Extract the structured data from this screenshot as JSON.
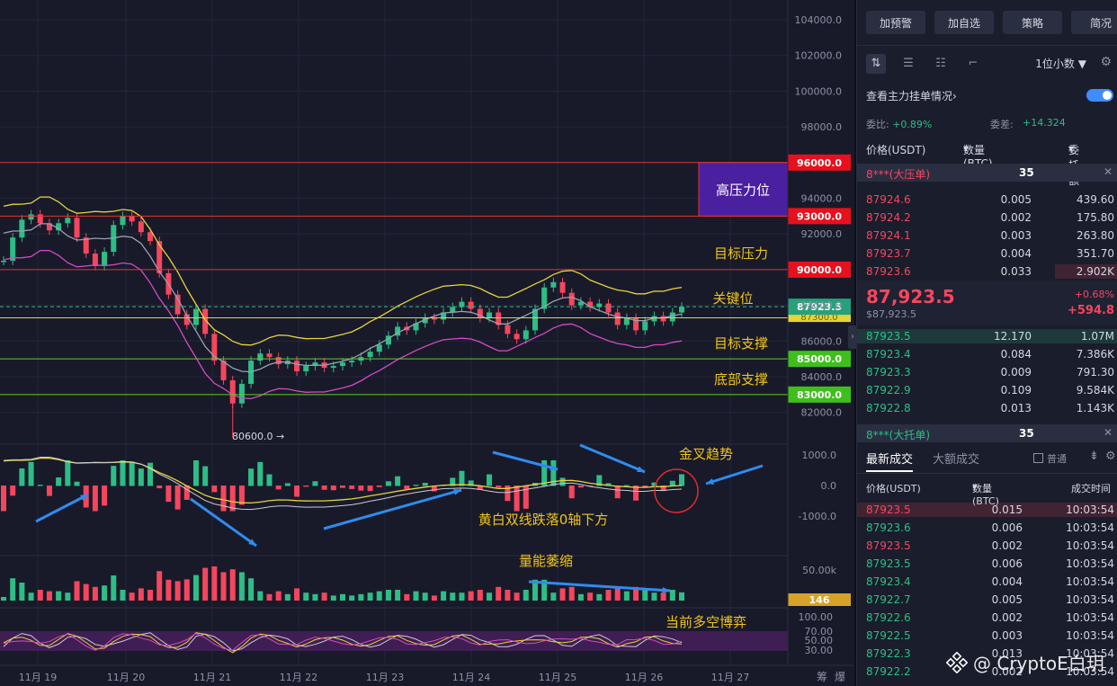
{
  "chart_data": {
    "type": "candlestick",
    "x_ticks": [
      "11月 19",
      "11月 20",
      "11月 21",
      "11月 22",
      "11月 23",
      "11月 24",
      "11月 25",
      "11月 26",
      "11月 27"
    ],
    "price_ticks": [
      "104000.0",
      "102000.0",
      "100000.0",
      "98000.0",
      "96000.0",
      "94000.0",
      "92000.0",
      "90000.0",
      "88000.0",
      "86000.0",
      "84000.0",
      "82000.0"
    ],
    "ylim": [
      81000,
      105000
    ],
    "current_price_label": "87923.5",
    "hidden_line_label": "87300.0",
    "levels": [
      {
        "price": 96000,
        "label": "96000.0",
        "color": "#e23434",
        "tag_color": "#e8101c"
      },
      {
        "price": 93000,
        "label": "93000.0",
        "color": "#e23434",
        "tag_color": "#e8101c"
      },
      {
        "price": 90000,
        "label": "90000.0",
        "color": "#e23434",
        "tag_color": "#e8101c"
      },
      {
        "price": 87300,
        "label": "",
        "color": "#e6d438",
        "tag_color": "#e6d438"
      },
      {
        "price": 85000,
        "label": "85000.0",
        "color": "#5fd11c",
        "tag_color": "#3fbf1c"
      },
      {
        "price": 83000,
        "label": "83000.0",
        "color": "#5fd11c",
        "tag_color": "#3fbf1c"
      }
    ],
    "zone": {
      "top": 96000,
      "bottom": 93000,
      "label": "高压力位",
      "color": "#4a1fa0"
    },
    "annotations": {
      "target_resistance": "目标压力",
      "key_level": "关键位",
      "target_support": "目标支撑",
      "bottom_support": "底部支撑",
      "low_marker": "80600.0 →",
      "golden_cross": "金叉趋势",
      "macd_note": "黄白双线跌落0轴下方",
      "volume_note": "量能萎缩",
      "rsi_note": "当前多空博弈"
    },
    "low_price": 80600,
    "close_series": [
      90500,
      91800,
      92800,
      93100,
      92600,
      92200,
      92600,
      92900,
      91800,
      90900,
      90200,
      91000,
      92500,
      93000,
      92700,
      92100,
      91600,
      89800,
      88600,
      87500,
      86900,
      87800,
      86400,
      84900,
      83800,
      82500,
      83600,
      84900,
      85300,
      85100,
      84700,
      84900,
      84300,
      84600,
      84800,
      84500,
      84600,
      84800,
      84900,
      85100,
      85400,
      85800,
      86300,
      86800,
      86600,
      87000,
      87300,
      87200,
      87600,
      87900,
      88200,
      87800,
      87300,
      87600,
      86900,
      86400,
      86100,
      86600,
      87800,
      89000,
      89300,
      88700,
      88000,
      88200,
      87900,
      88100,
      87600,
      86900,
      87300,
      86600,
      87100,
      87400,
      87100,
      87600,
      87923
    ],
    "macd_ticks": [
      "1000.0",
      "0.0",
      "-1000.0"
    ],
    "volume_tick": "50.00k",
    "volume_label": "146",
    "rsi_ticks": [
      "100.00",
      "70.00",
      "50.00",
      "30.00"
    ],
    "right_bottom_labels": [
      "筹",
      "爆"
    ]
  },
  "panel": {
    "buttons": [
      "加预警",
      "加自选",
      "策略",
      "简况"
    ],
    "decimal_select": "1位小数",
    "decimal_arrow": "▼",
    "toggle_label": "查看主力挂单情况",
    "toggle_chevron": "›",
    "ratio_label": "委比:",
    "ratio_value": "+0.89%",
    "diff_label": "委差:",
    "diff_value": "+14.324",
    "headers": {
      "price": "价格(USDT)",
      "qty": "数量 (BTC)",
      "amount": "委托额",
      "arrow": "▾"
    },
    "big_ask": {
      "label": "8***(大压单)",
      "qty": "35",
      "x": "✕"
    },
    "big_bid": {
      "label": "8***(大托单)",
      "qty": "35",
      "x": "✕"
    },
    "asks": [
      {
        "price": "87924.6",
        "qty": "0.005",
        "amount": "439.60"
      },
      {
        "price": "87924.2",
        "qty": "0.002",
        "amount": "175.80"
      },
      {
        "price": "87924.1",
        "qty": "0.003",
        "amount": "263.80"
      },
      {
        "price": "87923.7",
        "qty": "0.004",
        "amount": "351.70"
      },
      {
        "price": "87923.6",
        "qty": "0.033",
        "amount": "2.902K"
      }
    ],
    "last_price": "87,923.5",
    "last_price_sub": "$87,923.5",
    "change_pct": "+0.68%",
    "change_abs": "+594.8",
    "bids": [
      {
        "price": "87923.5",
        "qty": "12.170",
        "amount": "1.07M"
      },
      {
        "price": "87923.4",
        "qty": "0.084",
        "amount": "7.386K"
      },
      {
        "price": "87923.3",
        "qty": "0.009",
        "amount": "791.30"
      },
      {
        "price": "87922.9",
        "qty": "0.109",
        "amount": "9.584K"
      },
      {
        "price": "87922.8",
        "qty": "0.013",
        "amount": "1.143K"
      }
    ],
    "trades_tab_active": "最新成交",
    "trades_tab_other": "大额成交",
    "checkbox_label": "普通",
    "trade_headers": {
      "price": "价格(USDT)",
      "qty": "数量(BTC)",
      "arrow": "▾",
      "time": "成交时间"
    },
    "trades": [
      {
        "price": "87923.5",
        "qty": "0.015",
        "time": "10:03:54",
        "side": "sell"
      },
      {
        "price": "87923.6",
        "qty": "0.006",
        "time": "10:03:54",
        "side": "buy"
      },
      {
        "price": "87923.5",
        "qty": "0.002",
        "time": "10:03:54",
        "side": "sell"
      },
      {
        "price": "87923.5",
        "qty": "0.006",
        "time": "10:03:54",
        "side": "buy"
      },
      {
        "price": "87923.4",
        "qty": "0.004",
        "time": "10:03:54",
        "side": "buy"
      },
      {
        "price": "87922.7",
        "qty": "0.005",
        "time": "10:03:54",
        "side": "buy"
      },
      {
        "price": "87922.6",
        "qty": "0.002",
        "time": "10:03:54",
        "side": "buy"
      },
      {
        "price": "87922.5",
        "qty": "0.003",
        "time": "10:03:54",
        "side": "buy"
      },
      {
        "price": "87922.3",
        "qty": "0.013",
        "time": "10:03:54",
        "side": "buy"
      },
      {
        "price": "87922.2",
        "qty": "0.002",
        "time": "10:03:54",
        "side": "buy"
      }
    ],
    "watermark": "@ CryptoE白玥"
  },
  "colors": {
    "up": "#2ebd85",
    "down": "#f6465d",
    "accent": "#3f8cff"
  }
}
